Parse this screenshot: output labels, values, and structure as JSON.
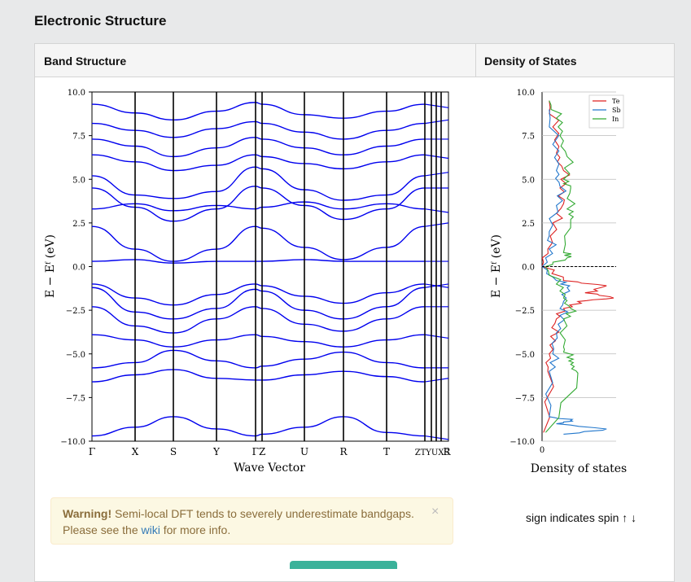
{
  "page": {
    "title": "Electronic Structure"
  },
  "panel": {
    "band_header": "Band Structure",
    "dos_header": "Density of States"
  },
  "warning": {
    "strong": "Warning!",
    "text1": " Semi-local DFT tends to severely underestimate bandgaps.",
    "text2a": "Please see the ",
    "link": "wiki",
    "text2b": " for more info.",
    "close": "×"
  },
  "spin_note": "sign indicates spin ↑ ↓",
  "chart_data": [
    {
      "type": "line",
      "title": "",
      "xlabel": "Wave Vector",
      "ylabel": "E − E_f (eV)",
      "ylim": [
        -10.0,
        10.0
      ],
      "yticks": [
        "10.0",
        "7.5",
        "5.0",
        "2.5",
        "0.0",
        "−2.5",
        "−5.0",
        "−7.5",
        "−10.0"
      ],
      "kpoints": [
        "Γ",
        "X",
        "S",
        "Y",
        "Γ",
        "Z",
        "U",
        "R",
        "T",
        "Z",
        "T",
        "Y",
        "U",
        "X",
        "S",
        "R"
      ],
      "kpoint_labels_display": [
        "Γ",
        "X",
        "S",
        "Y",
        "ΓZ",
        "U",
        "R",
        "T",
        "ZTYUXS",
        "R"
      ],
      "line_color": "#0000ee",
      "series": [
        {
          "values": [
            -9.7,
            -9.2,
            -8.6,
            -9.3,
            -9.7,
            -9.6,
            -9.2,
            -8.6,
            -9.5,
            -9.7
          ]
        },
        {
          "values": [
            -5.8,
            -5.5,
            -4.8,
            -5.4,
            -5.8,
            -5.7,
            -5.3,
            -4.9,
            -5.5,
            -5.8
          ]
        },
        {
          "values": [
            -6.6,
            -6.2,
            -5.9,
            -6.4,
            -6.5,
            -6.5,
            -6.2,
            -6.0,
            -6.3,
            -6.6
          ]
        },
        {
          "values": [
            -3.9,
            -4.2,
            -4.6,
            -4.2,
            -3.9,
            -4.0,
            -4.3,
            -4.6,
            -4.2,
            -3.9
          ]
        },
        {
          "values": [
            -2.3,
            -3.4,
            -3.8,
            -3.0,
            -2.3,
            -2.4,
            -3.3,
            -3.7,
            -3.0,
            -2.3
          ]
        },
        {
          "values": [
            -1.2,
            -2.6,
            -3.0,
            -2.4,
            -1.3,
            -1.4,
            -2.5,
            -3.0,
            -2.3,
            -1.2
          ]
        },
        {
          "values": [
            -1.0,
            -1.8,
            -2.2,
            -1.6,
            -1.0,
            -1.1,
            -1.7,
            -2.1,
            -1.5,
            -1.0
          ]
        },
        {
          "values": [
            0.3,
            0.4,
            0.2,
            0.3,
            0.3,
            0.3,
            0.4,
            0.3,
            0.3,
            0.3
          ]
        },
        {
          "values": [
            2.3,
            1.0,
            0.3,
            1.0,
            2.3,
            2.2,
            1.1,
            0.4,
            1.1,
            2.3
          ]
        },
        {
          "values": [
            3.3,
            3.6,
            3.2,
            3.5,
            3.3,
            3.4,
            3.7,
            3.3,
            3.6,
            3.3
          ]
        },
        {
          "values": [
            4.5,
            3.4,
            2.6,
            3.3,
            4.6,
            4.5,
            3.5,
            2.7,
            3.3,
            4.5
          ]
        },
        {
          "values": [
            5.2,
            4.1,
            3.9,
            4.3,
            5.7,
            5.6,
            4.4,
            3.8,
            4.1,
            5.2
          ]
        },
        {
          "values": [
            6.4,
            6.0,
            5.5,
            5.8,
            6.4,
            6.3,
            5.9,
            5.6,
            6.0,
            6.4
          ]
        },
        {
          "values": [
            7.3,
            6.9,
            6.3,
            6.8,
            7.4,
            7.3,
            6.8,
            6.4,
            6.9,
            7.3
          ]
        },
        {
          "values": [
            8.2,
            7.8,
            7.4,
            7.9,
            8.3,
            8.2,
            7.7,
            7.3,
            7.8,
            8.2
          ]
        },
        {
          "values": [
            9.3,
            8.8,
            8.4,
            8.9,
            9.4,
            9.3,
            8.7,
            8.5,
            8.9,
            9.3
          ]
        }
      ]
    },
    {
      "type": "line",
      "title": "",
      "xlabel": "Density of states",
      "ylabel": "E − E_f (eV)",
      "ylim": [
        -10.0,
        10.0
      ],
      "yticks": [
        "10.0",
        "7.5",
        "5.0",
        "2.5",
        "0.0",
        "−2.5",
        "−5.0",
        "−7.5",
        "−10.0"
      ],
      "xticks": [
        "0"
      ],
      "legend": "top-right",
      "fermi_line": 0.0,
      "series": [
        {
          "name": "Te",
          "color": "#dd2222",
          "points": [
            [
              -9.5,
              0.02
            ],
            [
              -6.0,
              0.08
            ],
            [
              -5.0,
              0.1
            ],
            [
              -4.0,
              0.12
            ],
            [
              -3.0,
              0.2
            ],
            [
              -2.4,
              0.3
            ],
            [
              -2.0,
              0.5
            ],
            [
              -1.8,
              1.0
            ],
            [
              -1.5,
              0.6
            ],
            [
              -1.1,
              0.9
            ],
            [
              -0.8,
              0.3
            ],
            [
              0.0,
              0.0
            ],
            [
              1.0,
              0.08
            ],
            [
              2.5,
              0.15
            ],
            [
              3.6,
              0.3
            ],
            [
              4.5,
              0.25
            ],
            [
              5.5,
              0.3
            ],
            [
              6.5,
              0.2
            ],
            [
              8.0,
              0.15
            ],
            [
              9.5,
              0.1
            ]
          ]
        },
        {
          "name": "Sb",
          "color": "#2277cc",
          "points": [
            [
              -9.6,
              0.3
            ],
            [
              -9.3,
              0.9
            ],
            [
              -9.0,
              0.2
            ],
            [
              -8.8,
              0.4
            ],
            [
              -8.6,
              0.1
            ],
            [
              -6.0,
              0.1
            ],
            [
              -5.0,
              0.15
            ],
            [
              -3.8,
              0.2
            ],
            [
              -2.8,
              0.25
            ],
            [
              -2.0,
              0.3
            ],
            [
              -1.2,
              0.35
            ],
            [
              -0.8,
              0.2
            ],
            [
              0.0,
              0.0
            ],
            [
              1.0,
              0.1
            ],
            [
              2.0,
              0.1
            ],
            [
              3.5,
              0.2
            ],
            [
              4.6,
              0.25
            ],
            [
              5.5,
              0.2
            ],
            [
              7.0,
              0.15
            ],
            [
              9.0,
              0.1
            ]
          ]
        },
        {
          "name": "In",
          "color": "#33aa33",
          "points": [
            [
              -9.5,
              0.05
            ],
            [
              -6.1,
              0.5
            ],
            [
              -5.6,
              0.4
            ],
            [
              -5.2,
              0.35
            ],
            [
              -4.6,
              0.3
            ],
            [
              -3.0,
              0.3
            ],
            [
              -2.4,
              0.4
            ],
            [
              -1.8,
              0.3
            ],
            [
              -1.0,
              0.2
            ],
            [
              0.0,
              0.05
            ],
            [
              0.5,
              0.35
            ],
            [
              0.8,
              0.3
            ],
            [
              2.7,
              0.4
            ],
            [
              3.3,
              0.35
            ],
            [
              4.5,
              0.4
            ],
            [
              5.0,
              0.3
            ],
            [
              6.3,
              0.35
            ],
            [
              7.5,
              0.25
            ],
            [
              8.5,
              0.2
            ],
            [
              9.5,
              0.1
            ]
          ]
        }
      ]
    }
  ]
}
